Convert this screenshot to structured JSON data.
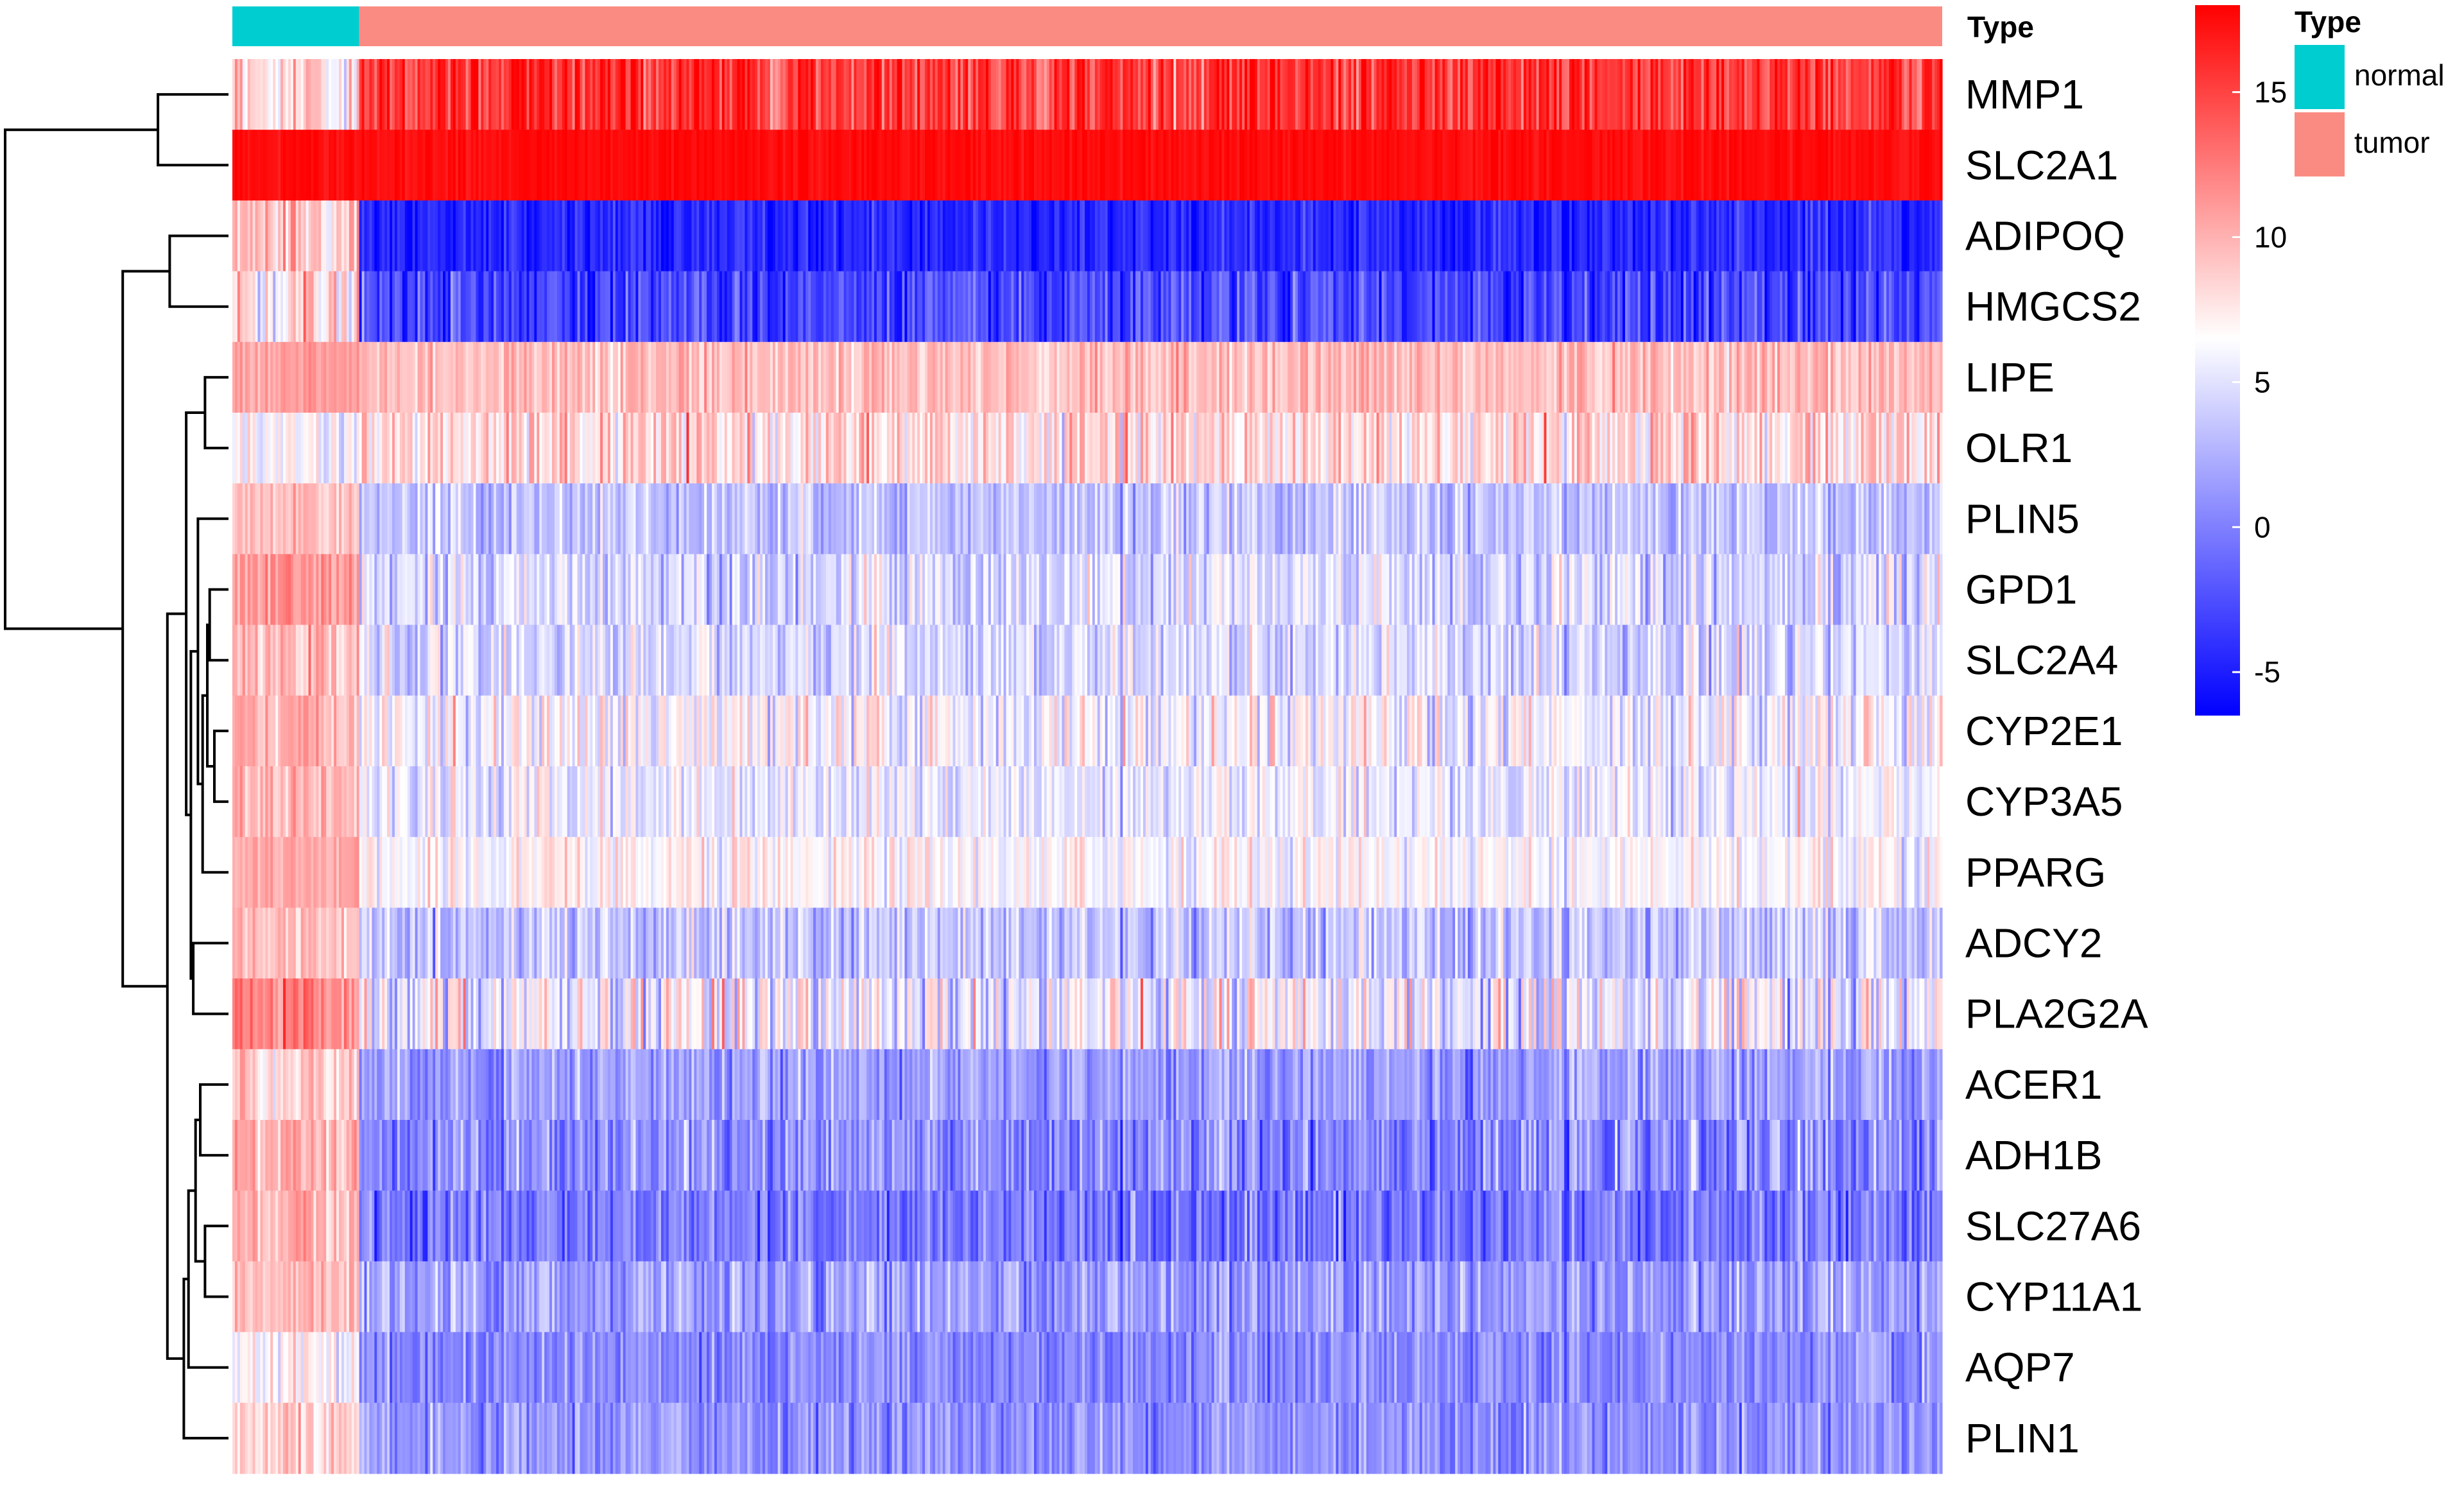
{
  "chart_data": {
    "type": "heatmap",
    "annotation": {
      "title": "Type",
      "groups": [
        {
          "name": "normal",
          "color": "#00CDD0",
          "count": 50
        },
        {
          "name": "tumor",
          "color": "#FA8B82",
          "count": 624
        }
      ]
    },
    "colorbar": {
      "min": -6.5,
      "max": 18,
      "ticks": [
        -5,
        0,
        5,
        10,
        15
      ],
      "tick_labels": [
        "-5",
        "0",
        "5",
        "10",
        "15"
      ],
      "low_color": "#0000FF",
      "mid_color": "#FFFFFF",
      "high_color": "#FF0000",
      "mid_value": 6.5
    },
    "genes": [
      "MMP1",
      "SLC2A1",
      "ADIPOQ",
      "HMGCS2",
      "LIPE",
      "OLR1",
      "PLIN5",
      "GPD1",
      "SLC2A4",
      "CYP2E1",
      "CYP3A5",
      "PPARG",
      "ADCY2",
      "PLA2G2A",
      "ACER1",
      "ADH1B",
      "SLC27A6",
      "CYP11A1",
      "AQP7",
      "PLIN1"
    ],
    "mean_expression": {
      "normal": [
        8.5,
        17.5,
        9,
        8,
        11,
        6.5,
        9.5,
        11,
        9.5,
        10,
        10,
        10.5,
        9.5,
        12,
        9,
        10.5,
        10,
        9.5,
        7,
        8.5
      ],
      "tumor": [
        15.5,
        17.5,
        -4.5,
        -3,
        9.5,
        8,
        3.5,
        4.5,
        4.5,
        6,
        5.5,
        6.5,
        3.5,
        5.5,
        1.5,
        0.5,
        -0.5,
        1.5,
        0.5,
        1
      ]
    },
    "spread": {
      "normal": [
        2.5,
        0.4,
        2,
        2.5,
        0.8,
        1.5,
        1,
        1.2,
        1.2,
        1,
        1.2,
        0.8,
        1.2,
        1.2,
        1.5,
        1.2,
        1.2,
        1.2,
        1.5,
        1.5
      ],
      "tumor": [
        2,
        0.4,
        1.2,
        1.8,
        1.2,
        2,
        1.5,
        2,
        1.8,
        2,
        1.6,
        1.4,
        1.8,
        2.8,
        1.6,
        2,
        1.8,
        1.8,
        1.5,
        1.5
      ]
    },
    "dendrogram": {
      "merges": [
        [
          -1,
          -2,
          0.3
        ],
        [
          -3,
          -4,
          0.25
        ],
        [
          -5,
          -6,
          0.1
        ],
        [
          -8,
          -9,
          0.08
        ],
        [
          -10,
          -11,
          0.06
        ],
        [
          4,
          5,
          0.09
        ],
        [
          6,
          -12,
          0.11
        ],
        [
          -7,
          7,
          0.13
        ],
        [
          -13,
          -14,
          0.15
        ],
        [
          8,
          9,
          0.16
        ],
        [
          3,
          10,
          0.18
        ],
        [
          -15,
          -16,
          0.12
        ],
        [
          -17,
          -18,
          0.1
        ],
        [
          12,
          13,
          0.14
        ],
        [
          14,
          -19,
          0.17
        ],
        [
          15,
          -20,
          0.19
        ],
        [
          11,
          16,
          0.26
        ],
        [
          2,
          17,
          0.45
        ],
        [
          1,
          18,
          0.95
        ]
      ]
    }
  }
}
